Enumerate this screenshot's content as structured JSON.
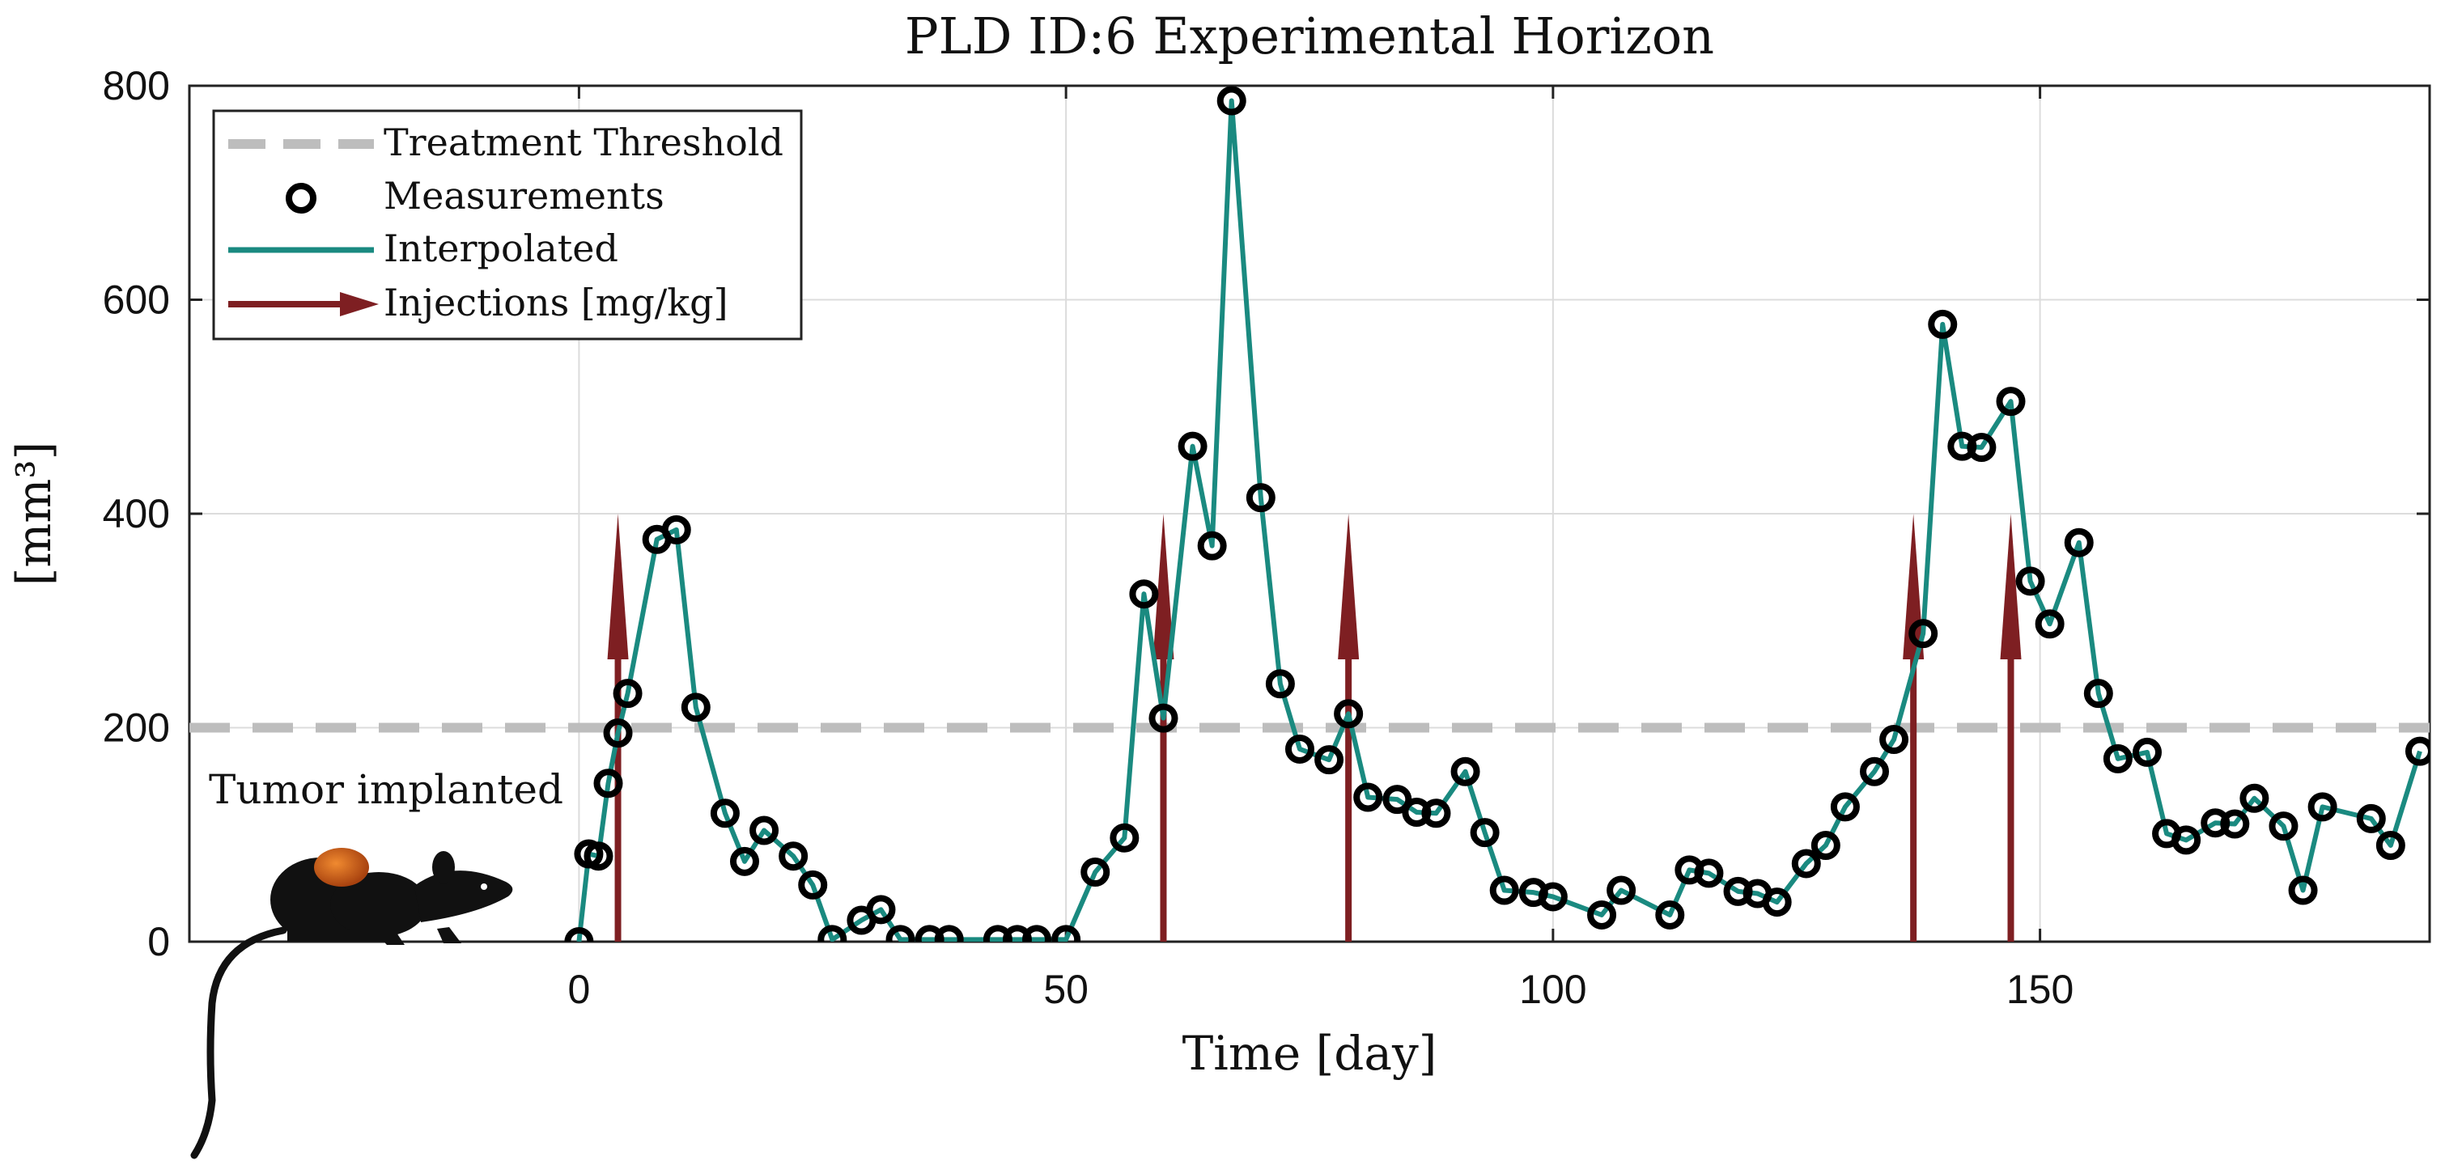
{
  "chart_data": {
    "type": "line",
    "title": "PLD ID:6 Experimental Horizon",
    "xlabel": "Time [day]",
    "ylabel": "[mm³]",
    "xlim": [
      -40,
      190
    ],
    "ylim": [
      0,
      800
    ],
    "xticks": [
      0,
      50,
      100,
      150
    ],
    "yticks": [
      0,
      200,
      400,
      600,
      800
    ],
    "grid": true,
    "legend_position": "top-left",
    "legend": [
      {
        "name": "Treatment Threshold",
        "style": "dashed-line",
        "color": "#bdbdbd"
      },
      {
        "name": "Measurements",
        "style": "circle-marker",
        "color": "#000000"
      },
      {
        "name": "Interpolated",
        "style": "line",
        "color": "#1a8a80"
      },
      {
        "name": "Injections [mg/kg]",
        "style": "arrow",
        "color": "#7e1f22"
      }
    ],
    "threshold": 200,
    "annotation": "Tumor implanted",
    "series": [
      {
        "name": "Measurements",
        "x": [
          0,
          1,
          2,
          3,
          4,
          5,
          8,
          10,
          12,
          15,
          17,
          19,
          22,
          24,
          26,
          29,
          31,
          33,
          36,
          38,
          43,
          45,
          47,
          50,
          53,
          56,
          58,
          60,
          63,
          65,
          67,
          70,
          72,
          74,
          77,
          79,
          81,
          84,
          86,
          88,
          91,
          93,
          95,
          98,
          100,
          105,
          107,
          112,
          114,
          116,
          119,
          121,
          123,
          126,
          128,
          130,
          133,
          135,
          138,
          140,
          142,
          144,
          147,
          149,
          151,
          154,
          156,
          158,
          161,
          163,
          165,
          168,
          170,
          172,
          175,
          177,
          179,
          184,
          186,
          189
        ],
        "y": [
          0,
          82,
          80,
          148,
          195,
          232,
          376,
          385,
          219,
          120,
          75,
          104,
          80,
          53,
          2,
          20,
          30,
          2,
          2,
          2,
          2,
          2,
          2,
          2,
          65,
          97,
          325,
          209,
          463,
          370,
          786,
          415,
          241,
          180,
          170,
          213,
          135,
          133,
          121,
          120,
          159,
          102,
          48,
          46,
          42,
          25,
          48,
          25,
          67,
          64,
          47,
          45,
          37,
          73,
          90,
          126,
          159,
          189,
          288,
          577,
          463,
          462,
          505,
          337,
          297,
          373,
          232,
          171,
          177,
          101,
          95,
          111,
          110,
          134,
          108,
          48,
          126,
          115,
          90,
          178
        ]
      },
      {
        "name": "Interpolated",
        "x": [
          0,
          1,
          2,
          3,
          4,
          5,
          8,
          10,
          12,
          15,
          17,
          19,
          22,
          24,
          26,
          29,
          31,
          33,
          36,
          38,
          43,
          45,
          47,
          50,
          53,
          56,
          58,
          60,
          63,
          65,
          67,
          70,
          72,
          74,
          77,
          79,
          81,
          84,
          86,
          88,
          91,
          93,
          95,
          98,
          100,
          105,
          107,
          112,
          114,
          116,
          119,
          121,
          123,
          126,
          128,
          130,
          133,
          135,
          138,
          140,
          142,
          144,
          147,
          149,
          151,
          154,
          156,
          158,
          161,
          163,
          165,
          168,
          170,
          172,
          175,
          177,
          179,
          184,
          186,
          189
        ],
        "y": [
          0,
          82,
          80,
          148,
          195,
          232,
          376,
          385,
          219,
          120,
          75,
          104,
          80,
          53,
          2,
          20,
          30,
          2,
          2,
          2,
          2,
          2,
          2,
          2,
          65,
          97,
          325,
          209,
          463,
          370,
          786,
          415,
          241,
          180,
          170,
          213,
          135,
          133,
          121,
          120,
          159,
          102,
          48,
          46,
          42,
          25,
          48,
          25,
          67,
          64,
          47,
          45,
          37,
          73,
          90,
          126,
          159,
          189,
          288,
          577,
          463,
          462,
          505,
          337,
          297,
          373,
          232,
          171,
          177,
          101,
          95,
          111,
          110,
          134,
          108,
          48,
          126,
          115,
          90,
          178
        ]
      },
      {
        "name": "Injections [mg/kg]",
        "x": [
          4,
          60,
          79,
          137,
          147
        ],
        "y": [
          400,
          400,
          400,
          400,
          400
        ]
      }
    ]
  },
  "colors": {
    "interpolated": "#1a8a80",
    "injection": "#7e1f22",
    "threshold": "#bdbdbd",
    "grid": "#dcdcdc",
    "marker": "#000000",
    "tumor": "#d8641c"
  },
  "icons": {
    "rat": "rat-silhouette-icon"
  }
}
